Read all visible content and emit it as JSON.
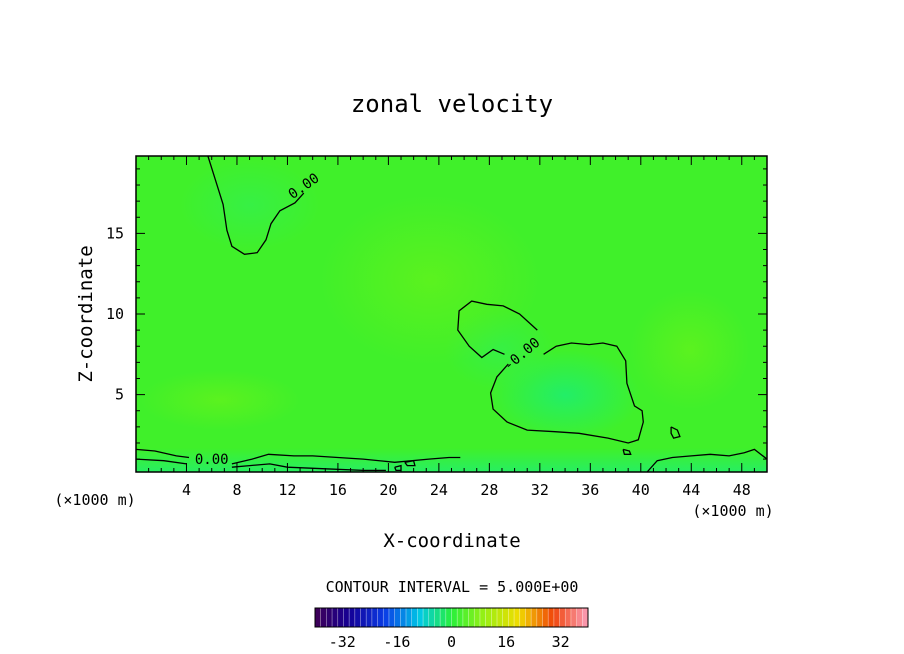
{
  "chart_data": {
    "type": "contour",
    "title": "zonal velocity",
    "xlabel": "X-coordinate",
    "ylabel": "Z-coordinate",
    "x_unit": "(×1000 m)",
    "xlim": [
      0,
      50
    ],
    "ylim": [
      0.2,
      19.8
    ],
    "x_ticks": [
      4,
      8,
      12,
      16,
      20,
      24,
      28,
      32,
      36,
      40,
      44,
      48
    ],
    "y_ticks": [
      5,
      10,
      15
    ],
    "contour_interval_text": "CONTOUR INTERVAL = 5.000E+00",
    "contour_labels": [
      {
        "text": "0.00",
        "x": 13.5,
        "y": 17.7
      },
      {
        "text": "0.00",
        "x": 6.0,
        "y": 0.7
      },
      {
        "text": "-0.00",
        "x": 30.8,
        "y": 7.3
      }
    ],
    "contours": [
      {
        "level": 0,
        "points": [
          [
            5.7,
            19.8
          ],
          [
            6.3,
            18.3
          ],
          [
            6.9,
            16.8
          ],
          [
            7.2,
            15.2
          ],
          [
            7.6,
            14.2
          ],
          [
            8.6,
            13.7
          ],
          [
            9.6,
            13.8
          ],
          [
            10.3,
            14.6
          ],
          [
            10.7,
            15.6
          ],
          [
            11.4,
            16.4
          ],
          [
            12.6,
            16.9
          ],
          [
            13.3,
            17.5
          ]
        ]
      },
      {
        "level": 0,
        "points": [
          [
            0,
            1.6
          ],
          [
            1.5,
            1.5
          ],
          [
            3.2,
            1.2
          ],
          [
            4.2,
            1.1
          ]
        ]
      },
      {
        "level": 0,
        "points": [
          [
            0,
            1.0
          ],
          [
            2.2,
            0.9
          ],
          [
            4.0,
            0.7
          ]
        ]
      },
      {
        "level": 0,
        "points": [
          [
            7.6,
            0.7
          ],
          [
            9.2,
            1.0
          ],
          [
            10.5,
            1.3
          ],
          [
            12.5,
            1.2
          ],
          [
            14.0,
            1.2
          ],
          [
            16.0,
            1.1
          ],
          [
            18.0,
            1.0
          ],
          [
            20.5,
            0.8
          ],
          [
            23.2,
            1.0
          ],
          [
            24.8,
            1.1
          ],
          [
            25.7,
            1.1
          ]
        ]
      },
      {
        "level": 0,
        "points": [
          [
            7.6,
            0.5
          ],
          [
            9.0,
            0.6
          ],
          [
            10.6,
            0.7
          ],
          [
            12.0,
            0.5
          ],
          [
            15.0,
            0.4
          ],
          [
            18.0,
            0.3
          ],
          [
            19.8,
            0.3
          ]
        ]
      },
      {
        "level": 0,
        "points": [
          [
            29.2,
            7.5
          ],
          [
            28.3,
            7.8
          ],
          [
            27.4,
            7.3
          ],
          [
            26.4,
            8.0
          ],
          [
            25.5,
            9.0
          ],
          [
            25.6,
            10.2
          ],
          [
            26.6,
            10.8
          ],
          [
            27.8,
            10.6
          ],
          [
            29.1,
            10.5
          ],
          [
            30.4,
            10.0
          ],
          [
            31.8,
            9.0
          ]
        ]
      },
      {
        "level": 0,
        "points": [
          [
            29.5,
            6.9
          ],
          [
            28.6,
            6.1
          ],
          [
            28.1,
            5.1
          ],
          [
            28.3,
            4.1
          ],
          [
            29.4,
            3.3
          ],
          [
            31.0,
            2.8
          ],
          [
            33.2,
            2.7
          ],
          [
            35.1,
            2.6
          ],
          [
            37.4,
            2.3
          ],
          [
            39.0,
            2.0
          ],
          [
            39.8,
            2.2
          ],
          [
            40.2,
            3.3
          ],
          [
            40.1,
            4.0
          ],
          [
            39.5,
            4.3
          ],
          [
            38.9,
            5.7
          ],
          [
            38.8,
            7.1
          ],
          [
            38.1,
            8.0
          ],
          [
            37.0,
            8.2
          ],
          [
            35.9,
            8.1
          ],
          [
            34.5,
            8.2
          ],
          [
            33.3,
            8.0
          ],
          [
            32.3,
            7.5
          ]
        ]
      },
      {
        "level": 0,
        "points": [
          [
            40.5,
            0.2
          ],
          [
            41.3,
            0.9
          ],
          [
            42.5,
            1.1
          ],
          [
            44.0,
            1.2
          ],
          [
            45.5,
            1.3
          ],
          [
            47.0,
            1.2
          ],
          [
            48.2,
            1.4
          ],
          [
            49.0,
            1.6
          ],
          [
            50.0,
            1.0
          ]
        ]
      },
      {
        "level": 0,
        "points": [
          [
            42.4,
            3.0
          ],
          [
            42.9,
            2.8
          ],
          [
            43.1,
            2.4
          ],
          [
            42.6,
            2.3
          ],
          [
            42.4,
            2.6
          ],
          [
            42.4,
            3.0
          ]
        ]
      },
      {
        "level": 0,
        "points": [
          [
            38.6,
            1.6
          ],
          [
            39.1,
            1.5
          ],
          [
            39.2,
            1.3
          ],
          [
            38.7,
            1.3
          ],
          [
            38.6,
            1.6
          ]
        ]
      },
      {
        "level": 0,
        "points": [
          [
            21.3,
            0.8
          ],
          [
            22.0,
            0.9
          ],
          [
            22.1,
            0.6
          ],
          [
            21.5,
            0.6
          ],
          [
            21.3,
            0.8
          ]
        ]
      },
      {
        "level": 0,
        "points": [
          [
            20.5,
            0.5
          ],
          [
            21.0,
            0.6
          ],
          [
            21.0,
            0.3
          ],
          [
            20.6,
            0.3
          ],
          [
            20.5,
            0.5
          ]
        ]
      }
    ],
    "colorbar": {
      "labels": [
        "-32",
        "-16",
        "0",
        "16",
        "32"
      ],
      "min": -40,
      "max": 40,
      "n_bins": 48
    }
  }
}
